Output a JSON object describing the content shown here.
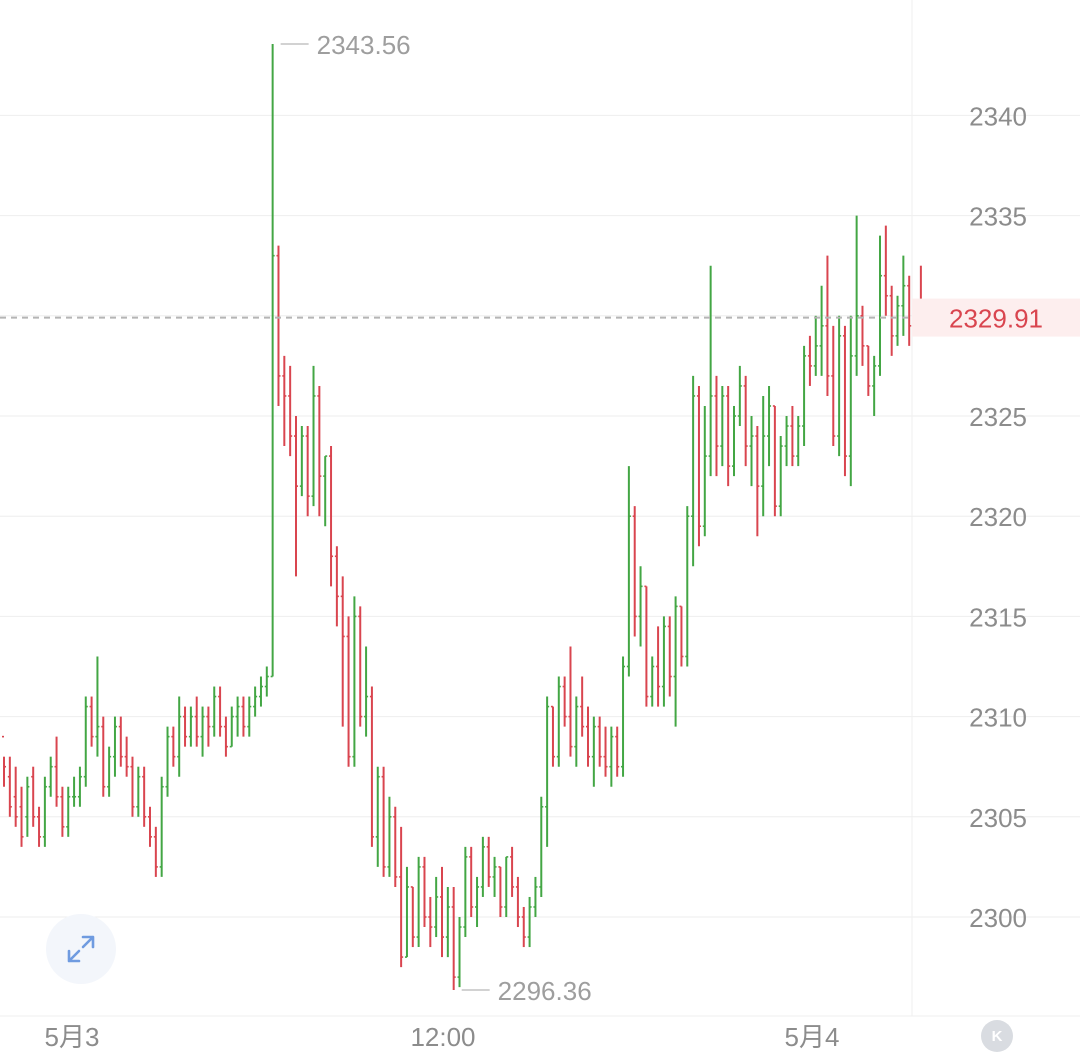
{
  "chart_data": {
    "type": "ohlc",
    "y_axis": {
      "ticks": [
        2300,
        2305,
        2310,
        2315,
        2320,
        2325,
        2330,
        2335,
        2340
      ],
      "tick_labels": [
        "2300",
        "2305",
        "2310",
        "2315",
        "2320",
        "2325",
        "2330",
        "2335",
        "2340"
      ],
      "ylim": [
        2294.3,
        2345.8
      ],
      "grid": true
    },
    "x_axis": {
      "labels": [
        "5月3",
        "12:00",
        "5月4"
      ]
    },
    "current_price": "2329.91",
    "annotations": {
      "high_label": "2343.56",
      "low_label": "2296.36"
    },
    "colors": {
      "up": "#43a644",
      "down": "#d9454f",
      "current_price": "#d9454f",
      "grid": "#eeeeee",
      "axis_text": "#8c8c8c"
    },
    "bars": [
      [
        2309.0,
        2308.0,
        2306.5,
        2307.5
      ],
      [
        2307.0,
        2308.0,
        2305.0,
        2305.5
      ],
      [
        2306.0,
        2307.5,
        2304.5,
        2305.0
      ],
      [
        2305.5,
        2306.5,
        2303.5,
        2304.0
      ],
      [
        2305.0,
        2307.0,
        2304.0,
        2306.5
      ],
      [
        2307.0,
        2307.5,
        2304.5,
        2305.0
      ],
      [
        2305.0,
        2305.5,
        2303.5,
        2304.0
      ],
      [
        2304.0,
        2307.0,
        2303.5,
        2306.5
      ],
      [
        2306.5,
        2308.0,
        2306.0,
        2307.5
      ],
      [
        2307.5,
        2309.0,
        2305.5,
        2306.0
      ],
      [
        2306.0,
        2306.5,
        2304.0,
        2304.5
      ],
      [
        2304.5,
        2306.5,
        2304.0,
        2306.0
      ],
      [
        2306.0,
        2307.0,
        2305.5,
        2306.0
      ],
      [
        2306.0,
        2307.5,
        2305.5,
        2307.0
      ],
      [
        2307.0,
        2311.0,
        2306.5,
        2310.5
      ],
      [
        2310.5,
        2311.0,
        2308.5,
        2309.0
      ],
      [
        2309.0,
        2313.0,
        2308.0,
        2309.5
      ],
      [
        2309.5,
        2310.0,
        2306.0,
        2306.5
      ],
      [
        2306.5,
        2308.5,
        2306.0,
        2308.0
      ],
      [
        2308.0,
        2310.0,
        2307.0,
        2309.5
      ],
      [
        2309.5,
        2310.0,
        2307.5,
        2308.0
      ],
      [
        2308.0,
        2309.0,
        2307.0,
        2307.5
      ],
      [
        2307.5,
        2308.0,
        2305.0,
        2305.5
      ],
      [
        2305.5,
        2307.5,
        2305.0,
        2307.0
      ],
      [
        2307.0,
        2307.5,
        2304.5,
        2305.0
      ],
      [
        2305.0,
        2305.5,
        2303.5,
        2304.0
      ],
      [
        2304.0,
        2304.5,
        2302.0,
        2302.5
      ],
      [
        2302.5,
        2307.0,
        2302.0,
        2306.5
      ],
      [
        2306.5,
        2309.5,
        2306.0,
        2309.0
      ],
      [
        2309.0,
        2309.5,
        2307.5,
        2308.0
      ],
      [
        2308.0,
        2311.0,
        2307.0,
        2310.0
      ],
      [
        2310.0,
        2310.5,
        2308.5,
        2309.0
      ],
      [
        2309.0,
        2310.5,
        2308.5,
        2310.0
      ],
      [
        2310.0,
        2311.0,
        2308.5,
        2309.0
      ],
      [
        2309.0,
        2310.5,
        2308.0,
        2310.0
      ],
      [
        2310.0,
        2310.5,
        2308.5,
        2309.5
      ],
      [
        2309.5,
        2311.5,
        2309.0,
        2311.0
      ],
      [
        2311.0,
        2311.5,
        2309.0,
        2309.5
      ],
      [
        2309.5,
        2310.0,
        2308.0,
        2308.5
      ],
      [
        2308.5,
        2310.5,
        2308.5,
        2310.0
      ],
      [
        2310.0,
        2311.0,
        2309.0,
        2310.5
      ],
      [
        2310.5,
        2311.0,
        2309.0,
        2309.5
      ],
      [
        2309.5,
        2311.0,
        2309.0,
        2310.5
      ],
      [
        2310.5,
        2311.5,
        2310.0,
        2311.0
      ],
      [
        2311.0,
        2312.0,
        2310.5,
        2311.5
      ],
      [
        2311.5,
        2312.5,
        2311.0,
        2312.0
      ],
      [
        2312.0,
        2343.56,
        2312.0,
        2333.0
      ],
      [
        2333.0,
        2333.5,
        2325.5,
        2327.0
      ],
      [
        2327.0,
        2328.0,
        2323.5,
        2326.0
      ],
      [
        2326.0,
        2327.5,
        2323.0,
        2324.0
      ],
      [
        2324.0,
        2325.0,
        2317.0,
        2321.5
      ],
      [
        2321.5,
        2324.5,
        2321.0,
        2324.0
      ],
      [
        2324.0,
        2324.5,
        2320.0,
        2321.0
      ],
      [
        2321.0,
        2327.5,
        2320.5,
        2326.0
      ],
      [
        2326.0,
        2326.5,
        2320.0,
        2322.0
      ],
      [
        2322.0,
        2323.0,
        2319.5,
        2323.0
      ],
      [
        2323.0,
        2323.5,
        2316.5,
        2318.0
      ],
      [
        2318.0,
        2318.5,
        2314.5,
        2316.0
      ],
      [
        2316.0,
        2317.0,
        2309.5,
        2314.0
      ],
      [
        2314.0,
        2315.0,
        2307.5,
        2308.0
      ],
      [
        2308.0,
        2316.0,
        2307.5,
        2315.0
      ],
      [
        2315.0,
        2315.5,
        2309.5,
        2310.0
      ],
      [
        2310.0,
        2313.5,
        2309.0,
        2311.0
      ],
      [
        2311.0,
        2311.5,
        2303.5,
        2304.0
      ],
      [
        2304.0,
        2307.5,
        2302.5,
        2307.0
      ],
      [
        2307.0,
        2307.5,
        2302.0,
        2302.5
      ],
      [
        2302.5,
        2306.0,
        2302.0,
        2305.0
      ],
      [
        2305.0,
        2305.5,
        2301.5,
        2302.0
      ],
      [
        2302.0,
        2304.5,
        2297.5,
        2298.0
      ],
      [
        2298.0,
        2302.5,
        2298.0,
        2301.5
      ],
      [
        2301.5,
        2301.5,
        2298.5,
        2299.0
      ],
      [
        2299.0,
        2303.0,
        2298.5,
        2302.5
      ],
      [
        2302.5,
        2303.0,
        2299.5,
        2300.0
      ],
      [
        2300.0,
        2301.0,
        2298.5,
        2299.5
      ],
      [
        2299.5,
        2302.0,
        2299.0,
        2301.0
      ],
      [
        2301.0,
        2302.5,
        2298.0,
        2299.0
      ],
      [
        2299.0,
        2301.5,
        2298.0,
        2300.5
      ],
      [
        2300.5,
        2301.5,
        2296.36,
        2297.0
      ],
      [
        2297.0,
        2300.0,
        2296.5,
        2299.5
      ],
      [
        2299.5,
        2303.5,
        2299.0,
        2303.0
      ],
      [
        2303.0,
        2303.5,
        2300.0,
        2300.5
      ],
      [
        2300.5,
        2302.0,
        2299.5,
        2301.5
      ],
      [
        2301.5,
        2304.0,
        2301.0,
        2303.5
      ],
      [
        2303.5,
        2304.0,
        2301.5,
        2302.0
      ],
      [
        2302.0,
        2303.0,
        2301.0,
        2302.5
      ],
      [
        2302.5,
        2302.5,
        2300.0,
        2300.5
      ],
      [
        2300.5,
        2303.0,
        2300.0,
        2303.0
      ],
      [
        2303.0,
        2303.5,
        2301.0,
        2301.5
      ],
      [
        2301.5,
        2302.0,
        2299.5,
        2300.0
      ],
      [
        2300.0,
        2300.5,
        2298.5,
        2299.0
      ],
      [
        2299.0,
        2301.0,
        2298.5,
        2300.5
      ],
      [
        2300.5,
        2302.0,
        2300.0,
        2301.5
      ],
      [
        2301.5,
        2306.0,
        2301.0,
        2305.5
      ],
      [
        2305.5,
        2311.0,
        2303.5,
        2310.5
      ],
      [
        2310.5,
        2310.5,
        2307.5,
        2308.0
      ],
      [
        2308.0,
        2312.0,
        2307.5,
        2311.5
      ],
      [
        2311.5,
        2312.0,
        2309.5,
        2310.0
      ],
      [
        2310.0,
        2313.5,
        2308.0,
        2308.5
      ],
      [
        2308.5,
        2311.0,
        2307.5,
        2310.5
      ],
      [
        2310.5,
        2312.0,
        2309.0,
        2309.5
      ],
      [
        2309.5,
        2310.5,
        2307.5,
        2308.0
      ],
      [
        2308.0,
        2310.0,
        2306.5,
        2309.5
      ],
      [
        2309.5,
        2310.0,
        2307.5,
        2308.0
      ],
      [
        2308.0,
        2309.5,
        2307.0,
        2307.5
      ],
      [
        2307.5,
        2309.5,
        2306.5,
        2309.0
      ],
      [
        2309.0,
        2309.5,
        2307.0,
        2307.5
      ],
      [
        2307.5,
        2313.0,
        2307.0,
        2312.5
      ],
      [
        2312.5,
        2322.5,
        2312.0,
        2320.0
      ],
      [
        2320.0,
        2320.5,
        2314.0,
        2315.0
      ],
      [
        2315.0,
        2317.5,
        2313.5,
        2316.5
      ],
      [
        2316.5,
        2316.5,
        2310.5,
        2311.0
      ],
      [
        2311.0,
        2313.0,
        2310.5,
        2312.5
      ],
      [
        2312.5,
        2314.5,
        2310.5,
        2311.5
      ],
      [
        2311.5,
        2315.0,
        2310.5,
        2314.5
      ],
      [
        2314.5,
        2315.0,
        2311.0,
        2312.0
      ],
      [
        2312.0,
        2316.0,
        2309.5,
        2315.5
      ],
      [
        2315.5,
        2315.5,
        2312.5,
        2313.0
      ],
      [
        2313.0,
        2320.5,
        2312.5,
        2320.0
      ],
      [
        2320.0,
        2327.0,
        2317.5,
        2326.0
      ],
      [
        2326.0,
        2326.5,
        2318.5,
        2319.5
      ],
      [
        2319.5,
        2325.5,
        2319.0,
        2323.0
      ],
      [
        2323.0,
        2332.5,
        2322.0,
        2326.0
      ],
      [
        2326.0,
        2327.0,
        2322.0,
        2323.5
      ],
      [
        2323.5,
        2326.5,
        2322.5,
        2326.0
      ],
      [
        2326.0,
        2326.5,
        2321.5,
        2322.5
      ],
      [
        2322.5,
        2325.5,
        2322.0,
        2325.0
      ],
      [
        2325.0,
        2327.5,
        2324.5,
        2326.5
      ],
      [
        2326.5,
        2327.0,
        2322.5,
        2323.5
      ],
      [
        2323.5,
        2325.0,
        2321.5,
        2324.0
      ],
      [
        2324.0,
        2324.5,
        2319.0,
        2321.5
      ],
      [
        2321.5,
        2326.0,
        2320.0,
        2324.0
      ],
      [
        2324.0,
        2326.5,
        2322.5,
        2325.5
      ],
      [
        2325.5,
        2325.5,
        2320.0,
        2320.5
      ],
      [
        2320.5,
        2324.0,
        2320.0,
        2323.5
      ],
      [
        2323.5,
        2325.0,
        2322.5,
        2324.5
      ],
      [
        2324.5,
        2325.5,
        2322.5,
        2323.0
      ],
      [
        2323.0,
        2325.0,
        2322.5,
        2324.5
      ],
      [
        2324.5,
        2328.5,
        2323.5,
        2328.0
      ],
      [
        2328.0,
        2329.0,
        2326.5,
        2327.5
      ],
      [
        2327.5,
        2330.0,
        2327.0,
        2328.5
      ],
      [
        2328.5,
        2331.5,
        2327.0,
        2329.5
      ],
      [
        2329.5,
        2333.0,
        2326.0,
        2327.0
      ],
      [
        2327.0,
        2329.5,
        2323.5,
        2324.0
      ],
      [
        2324.0,
        2330.0,
        2323.0,
        2329.0
      ],
      [
        2329.0,
        2329.5,
        2322.0,
        2323.0
      ],
      [
        2323.0,
        2330.0,
        2321.5,
        2328.0
      ],
      [
        2328.0,
        2335.0,
        2327.0,
        2330.0
      ],
      [
        2330.0,
        2330.5,
        2327.5,
        2328.5
      ],
      [
        2328.5,
        2328.5,
        2326.0,
        2326.5
      ],
      [
        2326.5,
        2328.0,
        2325.0,
        2327.5
      ],
      [
        2327.5,
        2334.0,
        2327.0,
        2332.0
      ],
      [
        2332.0,
        2334.5,
        2330.0,
        2331.0
      ],
      [
        2331.0,
        2331.5,
        2328.0,
        2329.0
      ],
      [
        2329.0,
        2331.0,
        2328.5,
        2330.5
      ],
      [
        2330.5,
        2333.0,
        2329.0,
        2331.5
      ],
      [
        2331.5,
        2332.0,
        2328.5,
        2329.5
      ],
      [
        2329.5,
        2330.5,
        2329.0,
        2330.0
      ],
      [
        2330.0,
        2332.5,
        2329.5,
        2329.91
      ]
    ]
  }
}
